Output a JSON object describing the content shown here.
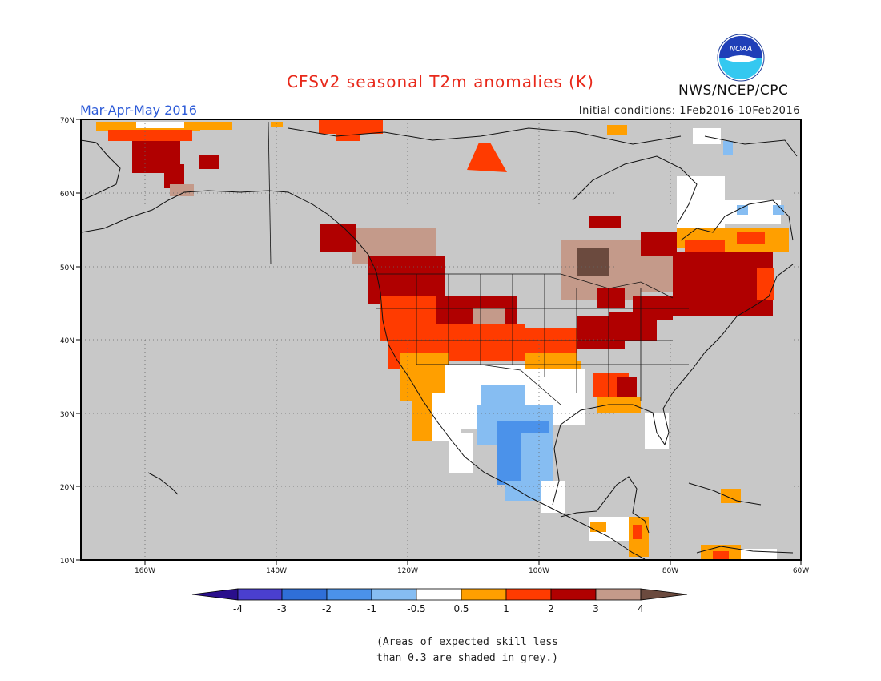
{
  "header": {
    "title": "CFSv2 seasonal T2m anomalies (K)",
    "period": "Mar-Apr-May 2016",
    "initial_conditions": "Initial conditions: 1Feb2016-10Feb2016",
    "agency": "NWS/NCEP/CPC",
    "logo_text": "NOAA"
  },
  "map": {
    "lat_labels": [
      "70N",
      "60N",
      "50N",
      "40N",
      "30N",
      "20N",
      "10N"
    ],
    "lon_labels": [
      "160W",
      "140W",
      "120W",
      "100W",
      "80W",
      "60W"
    ],
    "background": "#c8c8c8"
  },
  "colorbar": {
    "labels": [
      "-4",
      "-3",
      "-2",
      "-1",
      "-0.5",
      "0.5",
      "1",
      "2",
      "3",
      "4"
    ],
    "colors": [
      "#2a0f8c",
      "#4a3fcf",
      "#2f6fd8",
      "#4b92ea",
      "#86bdf2",
      "#ffffff",
      "#ff9f00",
      "#ff3b00",
      "#b00000",
      "#c49a8a",
      "#6b4a3e"
    ]
  },
  "note": {
    "line1": "(Areas of expected skill less",
    "line2": "than 0.3 are shaded in grey.)"
  }
}
